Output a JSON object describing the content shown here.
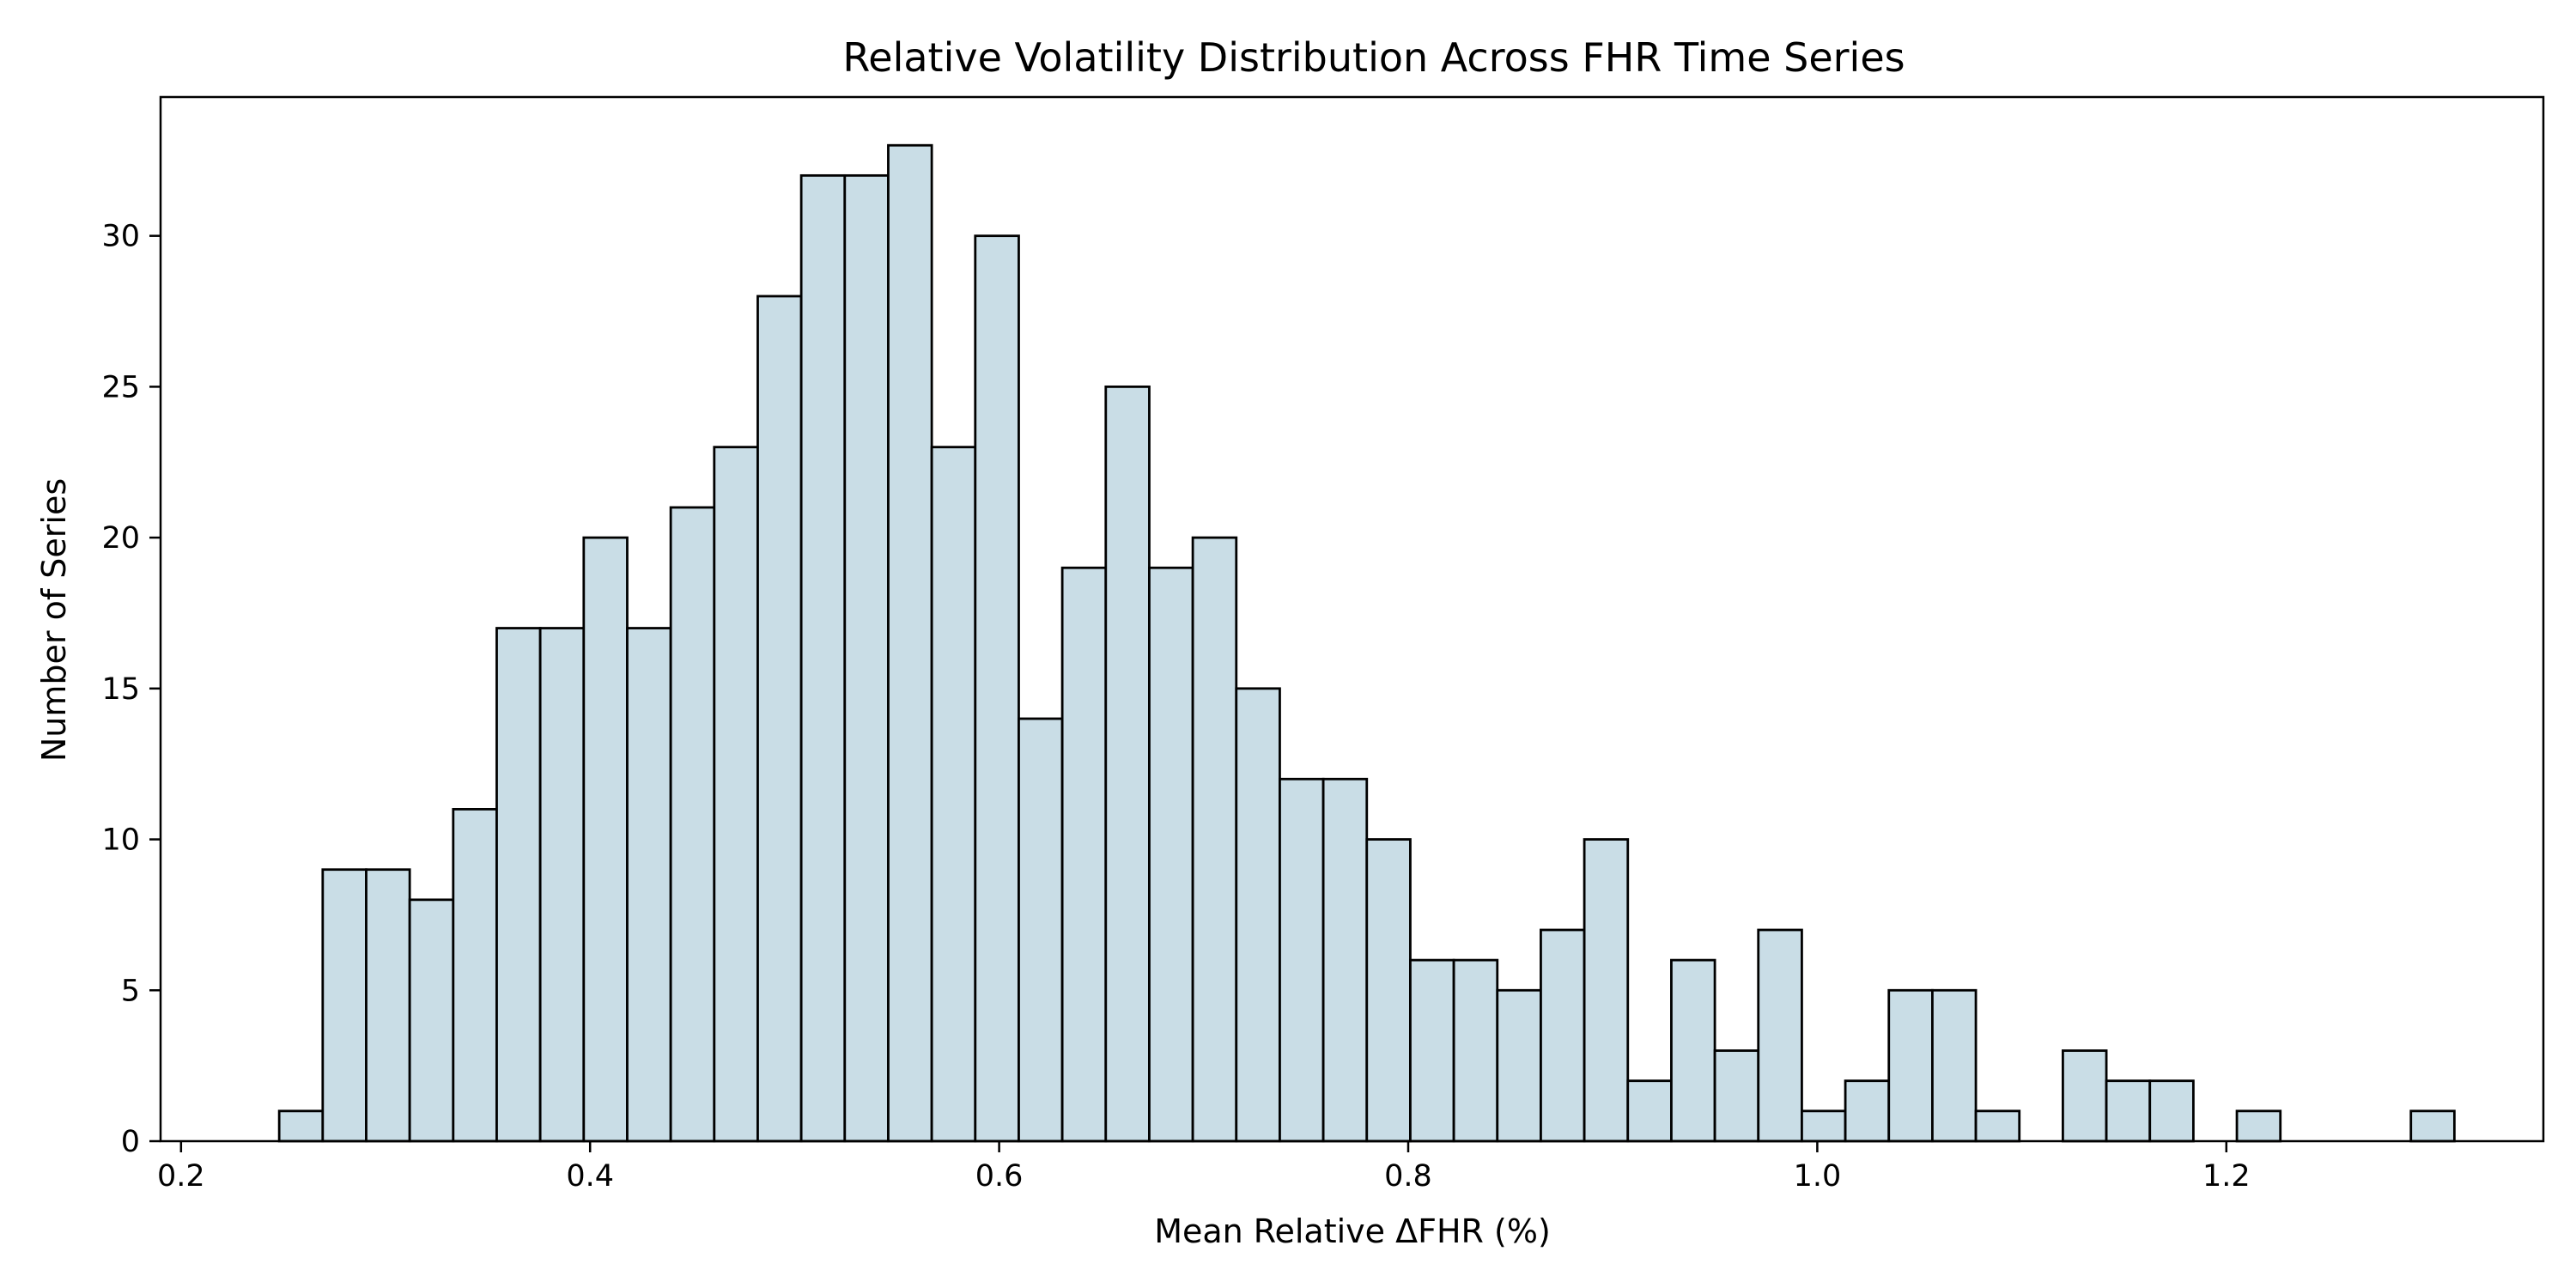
{
  "colors": {
    "bar_fill": "#c9dde6",
    "bar_edge": "#000000"
  },
  "chart_data": {
    "type": "bar",
    "title": "Relative Volatility Distribution Across FHR Time Series",
    "xlabel": "Mean Relative ΔFHR (%)",
    "ylabel": "Number of Series",
    "xlim": [
      0.19,
      1.355
    ],
    "ylim": [
      0,
      34.6
    ],
    "xticks": [
      0.2,
      0.4,
      0.6,
      0.8,
      1.0,
      1.2
    ],
    "xtick_labels": [
      "0.2",
      "0.4",
      "0.6",
      "0.8",
      "1.0",
      "1.2"
    ],
    "yticks": [
      0,
      5,
      10,
      15,
      20,
      25,
      30
    ],
    "ytick_labels": [
      "0",
      "5",
      "10",
      "15",
      "20",
      "25",
      "30"
    ],
    "grid": false,
    "bin_start": 0.248,
    "bin_width": 0.02127,
    "values": [
      1,
      9,
      9,
      8,
      11,
      17,
      17,
      20,
      17,
      21,
      23,
      28,
      32,
      32,
      33,
      23,
      30,
      14,
      19,
      25,
      19,
      20,
      15,
      12,
      12,
      10,
      6,
      6,
      5,
      7,
      10,
      2,
      6,
      3,
      7,
      1,
      2,
      5,
      5,
      1,
      0,
      3,
      2,
      2,
      0,
      1,
      0,
      0,
      0,
      1
    ]
  }
}
